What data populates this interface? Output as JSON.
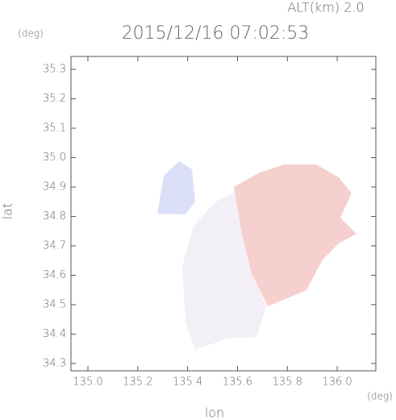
{
  "chart_data": {
    "type": "map",
    "title": "2015/12/16 07:02:53",
    "subtitle": "ALT(km) 2.0",
    "x_label": "lon",
    "x_unit": "(deg)",
    "y_label": "lat",
    "y_unit": "(deg)",
    "xlim": [
      134.932,
      136.155
    ],
    "ylim": [
      34.275,
      35.344
    ],
    "xticks": [
      {
        "value": 135.0,
        "label": "135.0"
      },
      135.2,
      135.4,
      135.6,
      135.8,
      {
        "value": 136.0,
        "label": "136.0"
      }
    ],
    "yticks": [
      34.3,
      34.4,
      34.5,
      34.6,
      34.7,
      34.8,
      34.9,
      {
        "value": 35.0,
        "label": "35.0"
      },
      35.1,
      35.2,
      35.3
    ]
  }
}
